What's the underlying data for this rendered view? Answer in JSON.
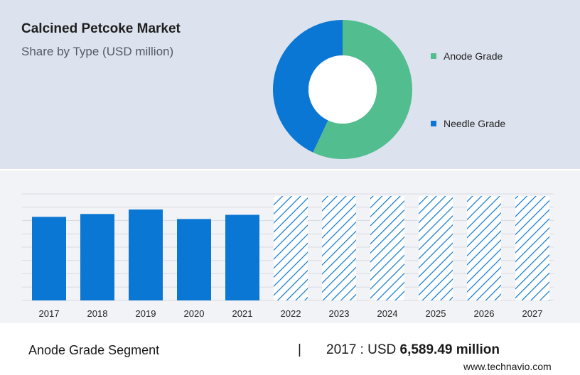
{
  "header": {
    "title": "Calcined Petcoke Market",
    "subtitle": "Share by Type (USD million)"
  },
  "legend": [
    {
      "label": "Anode Grade",
      "color": "#52be8f"
    },
    {
      "label": "Needle Grade",
      "color": "#0b77d4"
    }
  ],
  "footer": {
    "segment_label": "Anode Grade Segment",
    "divider": "|",
    "value_prefix": "2017 : USD ",
    "value_amount": "6,589.49 million",
    "watermark": "www.technavio.com"
  },
  "chart_data": [
    {
      "type": "pie",
      "variant": "donut",
      "slices": [
        {
          "label": "Anode Grade",
          "value": 57,
          "color": "#52be8f"
        },
        {
          "label": "Needle Grade",
          "value": 43,
          "color": "#0b77d4"
        }
      ],
      "legend_position": "right"
    },
    {
      "type": "bar",
      "categories": [
        "2017",
        "2018",
        "2019",
        "2020",
        "2021",
        "2022",
        "2023",
        "2024",
        "2025",
        "2026",
        "2027"
      ],
      "values": [
        6589.49,
        6815,
        7170,
        6420,
        6750,
        null,
        null,
        null,
        null,
        null,
        null
      ],
      "forecast_hatched": [
        "2022",
        "2023",
        "2024",
        "2025",
        "2026",
        "2027"
      ],
      "bar_color": "#0b77d4",
      "ylim": [
        0,
        8400
      ],
      "grid": true
    }
  ]
}
